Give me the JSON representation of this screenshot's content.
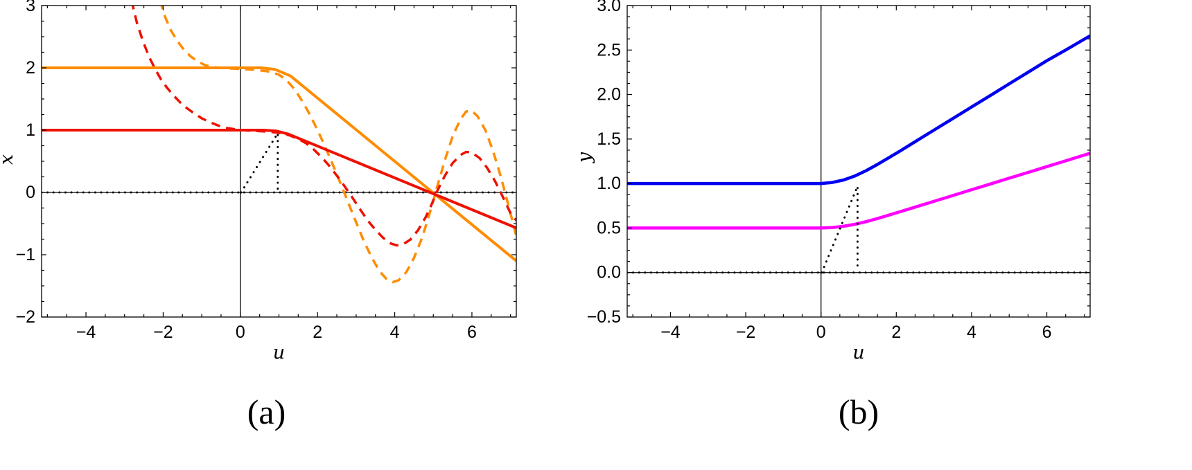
{
  "figure_background": "#ffffff",
  "chart_data": [
    {
      "id": "a",
      "type": "line",
      "caption": "(a)",
      "xlabel": "u",
      "ylabel": "x",
      "xlim": [
        -5.15,
        7.15
      ],
      "ylim": [
        -2,
        3
      ],
      "xticks": [
        -4,
        -2,
        0,
        2,
        4,
        6
      ],
      "xtick_labels": [
        "−4",
        "−2",
        "0",
        "2",
        "4",
        "6"
      ],
      "yticks": [
        -2,
        -1,
        0,
        1,
        2,
        3
      ],
      "ytick_labels": [
        "−2",
        "−1",
        "0",
        "1",
        "2",
        "3"
      ],
      "xminor_step": 0.5,
      "yminor_step": 0.25,
      "grid": false,
      "legend": "none",
      "axis_lines": {
        "vertical_at_u0": true,
        "horizontal_at_0": true
      },
      "series": [
        {
          "name": "zero-baseline-dotted",
          "color": "#000000",
          "style": "dotted",
          "width": 3,
          "points": [
            [
              -5.15,
              0
            ],
            [
              7.15,
              0
            ]
          ]
        },
        {
          "name": "orange-dashed-curve",
          "color": "#FF8C00",
          "style": "dashed",
          "width": 3.5,
          "points": [
            [
              -2.08,
              3.08
            ],
            [
              -1.95,
              2.82
            ],
            [
              -1.8,
              2.6
            ],
            [
              -1.62,
              2.42
            ],
            [
              -1.45,
              2.28
            ],
            [
              -1.28,
              2.18
            ],
            [
              -1.1,
              2.1
            ],
            [
              -0.9,
              2.04
            ],
            [
              -0.7,
              2.01
            ],
            [
              -0.5,
              2.0
            ],
            [
              -0.25,
              1.99
            ],
            [
              0,
              1.98
            ],
            [
              0.25,
              1.975
            ],
            [
              0.5,
              1.96
            ],
            [
              0.75,
              1.94
            ],
            [
              1,
              1.89
            ],
            [
              1.2,
              1.8
            ],
            [
              1.4,
              1.66
            ],
            [
              1.6,
              1.47
            ],
            [
              1.8,
              1.25
            ],
            [
              2,
              1.0
            ],
            [
              2.2,
              0.73
            ],
            [
              2.4,
              0.44
            ],
            [
              2.6,
              0.14
            ],
            [
              2.8,
              -0.17
            ],
            [
              3,
              -0.48
            ],
            [
              3.2,
              -0.78
            ],
            [
              3.4,
              -1.04
            ],
            [
              3.6,
              -1.26
            ],
            [
              3.8,
              -1.4
            ],
            [
              3.95,
              -1.44
            ],
            [
              4.1,
              -1.41
            ],
            [
              4.3,
              -1.28
            ],
            [
              4.5,
              -1.05
            ],
            [
              4.7,
              -0.74
            ],
            [
              4.85,
              -0.45
            ],
            [
              5,
              -0.13
            ],
            [
              5.15,
              0.2
            ],
            [
              5.3,
              0.52
            ],
            [
              5.5,
              0.9
            ],
            [
              5.7,
              1.17
            ],
            [
              5.85,
              1.3
            ],
            [
              6,
              1.31
            ],
            [
              6.15,
              1.22
            ],
            [
              6.35,
              1.0
            ],
            [
              6.55,
              0.66
            ],
            [
              6.75,
              0.25
            ],
            [
              6.95,
              -0.22
            ],
            [
              7.15,
              -0.7
            ]
          ]
        },
        {
          "name": "red-dashed-curve",
          "color": "#EE1100",
          "style": "dashed",
          "width": 3.5,
          "points": [
            [
              -2.82,
              3.08
            ],
            [
              -2.68,
              2.72
            ],
            [
              -2.52,
              2.42
            ],
            [
              -2.36,
              2.17
            ],
            [
              -2.2,
              1.97
            ],
            [
              -2.05,
              1.81
            ],
            [
              -1.9,
              1.68
            ],
            [
              -1.72,
              1.55
            ],
            [
              -1.55,
              1.44
            ],
            [
              -1.38,
              1.35
            ],
            [
              -1.2,
              1.27
            ],
            [
              -1,
              1.19
            ],
            [
              -0.8,
              1.13
            ],
            [
              -0.6,
              1.08
            ],
            [
              -0.4,
              1.04
            ],
            [
              -0.2,
              1.02
            ],
            [
              0,
              1.0
            ],
            [
              0.3,
              0.99
            ],
            [
              0.6,
              0.98
            ],
            [
              0.9,
              0.965
            ],
            [
              1.1,
              0.945
            ],
            [
              1.3,
              0.91
            ],
            [
              1.5,
              0.86
            ],
            [
              1.7,
              0.79
            ],
            [
              1.9,
              0.69
            ],
            [
              2.1,
              0.57
            ],
            [
              2.3,
              0.43
            ],
            [
              2.5,
              0.27
            ],
            [
              2.7,
              0.1
            ],
            [
              2.9,
              -0.08
            ],
            [
              3.1,
              -0.27
            ],
            [
              3.3,
              -0.45
            ],
            [
              3.5,
              -0.6
            ],
            [
              3.7,
              -0.73
            ],
            [
              3.9,
              -0.82
            ],
            [
              4.05,
              -0.85
            ],
            [
              4.2,
              -0.84
            ],
            [
              4.4,
              -0.76
            ],
            [
              4.6,
              -0.61
            ],
            [
              4.8,
              -0.4
            ],
            [
              4.95,
              -0.2
            ],
            [
              5.1,
              0.02
            ],
            [
              5.3,
              0.27
            ],
            [
              5.5,
              0.47
            ],
            [
              5.7,
              0.6
            ],
            [
              5.85,
              0.65
            ],
            [
              6,
              0.64
            ],
            [
              6.2,
              0.55
            ],
            [
              6.4,
              0.39
            ],
            [
              6.6,
              0.18
            ],
            [
              6.8,
              -0.07
            ],
            [
              7,
              -0.33
            ],
            [
              7.15,
              -0.45
            ]
          ]
        },
        {
          "name": "orange-solid-line",
          "color": "#FF8C00",
          "style": "solid",
          "width": 4,
          "points": [
            [
              -5.15,
              2
            ],
            [
              0.55,
              2
            ],
            [
              0.9,
              1.975
            ],
            [
              1.3,
              1.87
            ],
            [
              7.15,
              -1.1
            ]
          ]
        },
        {
          "name": "red-solid-line",
          "color": "#EE1100",
          "style": "solid",
          "width": 4,
          "points": [
            [
              -5.15,
              1
            ],
            [
              0.6,
              1
            ],
            [
              0.95,
              0.985
            ],
            [
              1.25,
              0.935
            ],
            [
              7.15,
              -0.57
            ]
          ]
        },
        {
          "name": "sawtooth-pulse-dotted",
          "color": "#000000",
          "style": "dotted",
          "width": 3,
          "points": [
            [
              0.02,
              0
            ],
            [
              0.97,
              0.95
            ],
            [
              0.97,
              0.02
            ]
          ]
        }
      ]
    },
    {
      "id": "b",
      "type": "line",
      "caption": "(b)",
      "xlabel": "u",
      "ylabel": "y",
      "xlim": [
        -5.15,
        7.15
      ],
      "ylim": [
        -0.5,
        3.0
      ],
      "xticks": [
        -4,
        -2,
        0,
        2,
        4,
        6
      ],
      "xtick_labels": [
        "−4",
        "−2",
        "0",
        "2",
        "4",
        "6"
      ],
      "yticks": [
        -0.5,
        0.0,
        0.5,
        1.0,
        1.5,
        2.0,
        2.5,
        3.0
      ],
      "ytick_labels": [
        "−0.5",
        "0.0",
        "0.5",
        "1.0",
        "1.5",
        "2.0",
        "2.5",
        "3.0"
      ],
      "xminor_step": 0.5,
      "yminor_step": 0.125,
      "grid": false,
      "legend": "none",
      "axis_lines": {
        "vertical_at_u0": true,
        "horizontal_at_0": true
      },
      "series": [
        {
          "name": "zero-baseline-dotted",
          "color": "#000000",
          "style": "dotted",
          "width": 3,
          "points": [
            [
              -5.15,
              0
            ],
            [
              7.15,
              0
            ]
          ]
        },
        {
          "name": "blue-solid-curve",
          "color": "#0000F0",
          "style": "solid",
          "width": 4.5,
          "points": [
            [
              -5.15,
              1
            ],
            [
              -0.3,
              1
            ],
            [
              0,
              1.0
            ],
            [
              0.3,
              1.012
            ],
            [
              0.6,
              1.04
            ],
            [
              0.9,
              1.085
            ],
            [
              1.2,
              1.145
            ],
            [
              1.5,
              1.215
            ],
            [
              1.8,
              1.29
            ],
            [
              2.1,
              1.365
            ],
            [
              2.5,
              1.47
            ],
            [
              3,
              1.6
            ],
            [
              3.5,
              1.73
            ],
            [
              4,
              1.86
            ],
            [
              4.5,
              1.99
            ],
            [
              5,
              2.12
            ],
            [
              5.5,
              2.25
            ],
            [
              6,
              2.38
            ],
            [
              6.5,
              2.5
            ],
            [
              7.15,
              2.66
            ]
          ]
        },
        {
          "name": "magenta-solid-curve",
          "color": "#FF00FF",
          "style": "solid",
          "width": 4.5,
          "points": [
            [
              -5.15,
              0.5
            ],
            [
              -0.3,
              0.5
            ],
            [
              0,
              0.5
            ],
            [
              0.3,
              0.506
            ],
            [
              0.6,
              0.52
            ],
            [
              0.9,
              0.542
            ],
            [
              1.2,
              0.572
            ],
            [
              1.5,
              0.607
            ],
            [
              1.8,
              0.645
            ],
            [
              2.1,
              0.683
            ],
            [
              2.5,
              0.735
            ],
            [
              3,
              0.8
            ],
            [
              3.5,
              0.865
            ],
            [
              4,
              0.93
            ],
            [
              4.5,
              0.995
            ],
            [
              5,
              1.06
            ],
            [
              5.5,
              1.125
            ],
            [
              6,
              1.19
            ],
            [
              6.5,
              1.255
            ],
            [
              7.15,
              1.34
            ]
          ]
        },
        {
          "name": "sawtooth-pulse-dotted",
          "color": "#000000",
          "style": "dotted",
          "width": 3,
          "points": [
            [
              0.02,
              0
            ],
            [
              0.97,
              0.97
            ],
            [
              0.97,
              0.02
            ]
          ]
        }
      ]
    }
  ]
}
